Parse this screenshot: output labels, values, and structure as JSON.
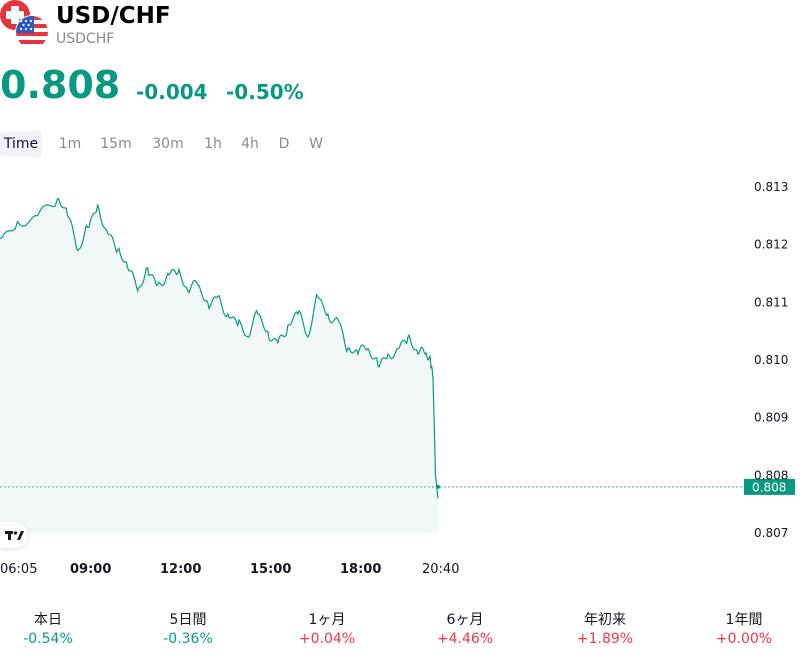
{
  "header": {
    "title": "USD/CHF",
    "symbol": "USDCHF"
  },
  "quote": {
    "price": "0.808",
    "change": "-0.004",
    "change_pct": "-0.50%"
  },
  "tabs": [
    "Time",
    "1m",
    "15m",
    "30m",
    "1h",
    "4h",
    "D",
    "W"
  ],
  "active_tab": "Time",
  "icons": {
    "base_flag": "swiss-flag-icon",
    "quote_flag": "us-flag-icon",
    "brand": "tradingview-logo-icon"
  },
  "colors": {
    "down": "#089981",
    "up": "#f23645",
    "line": "#089981",
    "area_fill": "#e8f4f2"
  },
  "chart_data": {
    "type": "area",
    "x_tick_labels": [
      "06:05",
      "09:00",
      "12:00",
      "15:00",
      "18:00",
      "20:40"
    ],
    "y_tick_labels": [
      "0.813",
      "0.812",
      "0.811",
      "0.810",
      "0.809",
      "0.808",
      "0.807"
    ],
    "ylim": [
      0.807,
      0.813
    ],
    "last_value_label": "0.808",
    "series": [
      {
        "x": [
          "06:05",
          "06:40",
          "07:20",
          "08:00",
          "08:20",
          "08:40",
          "09:00",
          "09:20",
          "09:40",
          "10:00",
          "10:20",
          "10:40",
          "11:00",
          "11:20",
          "11:40",
          "12:00",
          "12:20",
          "12:40",
          "13:00",
          "13:20",
          "13:40",
          "14:00",
          "14:20",
          "14:40",
          "15:00",
          "15:20",
          "15:40",
          "16:00",
          "16:20",
          "16:40",
          "17:00",
          "17:20",
          "17:40",
          "18:00",
          "18:20",
          "18:40",
          "19:00",
          "19:20",
          "19:40",
          "20:00",
          "20:15",
          "20:25",
          "20:30",
          "20:35",
          "20:40"
        ],
        "values": [
          0.8121,
          0.8124,
          0.8125,
          0.8128,
          0.8125,
          0.8119,
          0.8123,
          0.8127,
          0.8122,
          0.8119,
          0.8116,
          0.8112,
          0.8116,
          0.8113,
          0.8115,
          0.8115,
          0.8112,
          0.8113,
          0.811,
          0.8111,
          0.8108,
          0.8106,
          0.8104,
          0.8108,
          0.8105,
          0.8103,
          0.8106,
          0.8108,
          0.8104,
          0.8111,
          0.8108,
          0.8107,
          0.8102,
          0.8101,
          0.8102,
          0.8099,
          0.8101,
          0.8102,
          0.8104,
          0.8101,
          0.8101,
          0.81,
          0.8097,
          0.808,
          0.8076
        ]
      }
    ]
  },
  "performance": [
    {
      "label": "本日",
      "value": "-0.54%",
      "dir": "neg"
    },
    {
      "label": "5日間",
      "value": "-0.36%",
      "dir": "neg"
    },
    {
      "label": "1ヶ月",
      "value": "+0.04%",
      "dir": "pos"
    },
    {
      "label": "6ヶ月",
      "value": "+4.46%",
      "dir": "pos"
    },
    {
      "label": "年初来",
      "value": "+1.89%",
      "dir": "pos"
    },
    {
      "label": "1年間",
      "value": "+0.00%",
      "dir": "pos"
    }
  ]
}
